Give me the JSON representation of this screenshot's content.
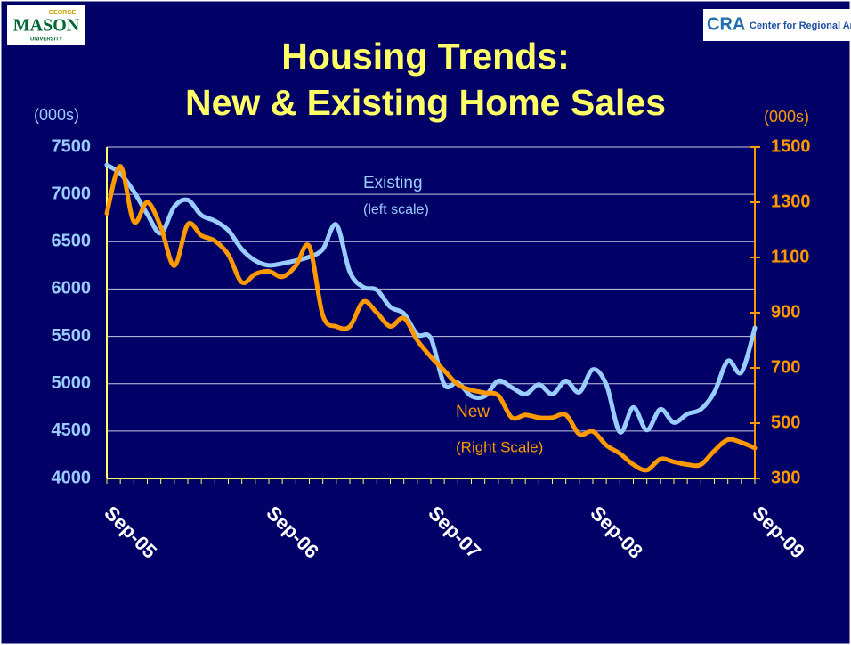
{
  "logos": {
    "left": [
      "GEORGE",
      "MASON",
      "UNIVERSITY"
    ],
    "right": [
      "CRA",
      "Center for Regional Analy"
    ]
  },
  "chart_data": {
    "type": "line",
    "title": [
      "Housing Trends:",
      "New & Existing Home Sales"
    ],
    "y_label": "(000s)",
    "y2_label": "(000s)",
    "categories": [
      "Sep-05",
      null,
      null,
      null,
      null,
      null,
      null,
      null,
      null,
      null,
      null,
      null,
      "Sep-06",
      null,
      null,
      null,
      null,
      null,
      null,
      null,
      null,
      null,
      null,
      null,
      "Sep-07",
      null,
      null,
      null,
      null,
      null,
      null,
      null,
      null,
      null,
      null,
      null,
      "Sep-08",
      null,
      null,
      null,
      null,
      null,
      null,
      null,
      null,
      null,
      null,
      null,
      "Sep-09"
    ],
    "series": [
      {
        "name": "Existing",
        "color": "#99ccff",
        "axis": "y",
        "values": [
          7310,
          7220,
          7030,
          6790,
          6590,
          6870,
          6940,
          6780,
          6720,
          6620,
          6420,
          6300,
          6250,
          6270,
          6300,
          6340,
          6420,
          6680,
          6180,
          6020,
          5990,
          5810,
          5740,
          5520,
          5480,
          4990,
          5010,
          4870,
          4870,
          5030,
          4960,
          4890,
          4990,
          4890,
          5030,
          4910,
          5150,
          4990,
          4490,
          4750,
          4510,
          4730,
          4590,
          4680,
          4730,
          4910,
          5240,
          5120,
          5590
        ]
      },
      {
        "name": "New",
        "color": "#ff9900",
        "axis": "y2",
        "values": [
          1260,
          1430,
          1230,
          1300,
          1210,
          1070,
          1220,
          1180,
          1160,
          1110,
          1010,
          1040,
          1050,
          1030,
          1070,
          1140,
          890,
          850,
          850,
          940,
          900,
          850,
          880,
          800,
          740,
          690,
          640,
          620,
          610,
          600,
          520,
          530,
          520,
          520,
          530,
          460,
          470,
          420,
          390,
          350,
          330,
          370,
          360,
          350,
          350,
          400,
          440,
          430,
          410
        ]
      }
    ],
    "annotations": [
      "Existing",
      "(left scale)",
      "New",
      "(Right Scale)"
    ],
    "ylim": [
      4000,
      7500
    ],
    "yticks": [
      4000,
      4500,
      5000,
      5500,
      6000,
      6500,
      7000,
      7500
    ],
    "y2lim": [
      300,
      1500
    ],
    "y2ticks": [
      300,
      500,
      700,
      900,
      1100,
      1300,
      1500
    ],
    "grid": true
  }
}
